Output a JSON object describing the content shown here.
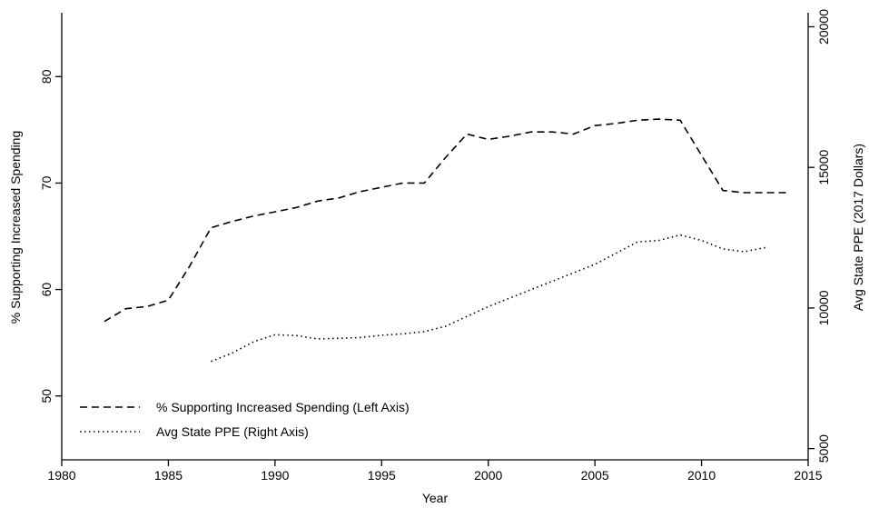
{
  "chart_data": {
    "type": "line",
    "xlabel": "Year",
    "ylabel_left": "% Supporting Increased Spending",
    "ylabel_right": "Avg State PPE (2017 Dollars)",
    "x_ticks": [
      1980,
      1985,
      1990,
      1995,
      2000,
      2005,
      2010,
      2015
    ],
    "x_tick_labels": [
      "1980",
      "1985",
      "1990",
      "1995",
      "2000",
      "2005",
      "2010",
      "2015"
    ],
    "y_left_ticks": [
      50,
      60,
      70,
      80
    ],
    "y_left_tick_labels": [
      "50",
      "60",
      "70",
      "80"
    ],
    "y_right_ticks": [
      5000,
      10000,
      15000,
      20000
    ],
    "y_right_tick_labels": [
      "5000",
      "10000",
      "15000",
      "20000"
    ],
    "xlim": [
      1980,
      2015
    ],
    "ylim_left": [
      44,
      86
    ],
    "ylim_right": [
      4600,
      20500
    ],
    "grid": false,
    "legend_position": "bottom-left",
    "series": [
      {
        "name": "% Supporting Increased Spending (Left Axis)",
        "axis": "left",
        "style": "dashed",
        "x": [
          1982,
          1983,
          1984,
          1985,
          1986,
          1987,
          1988,
          1989,
          1990,
          1991,
          1992,
          1993,
          1994,
          1995,
          1996,
          1997,
          1998,
          1999,
          2000,
          2001,
          2002,
          2003,
          2004,
          2005,
          2006,
          2007,
          2008,
          2009,
          2010,
          2011,
          2012,
          2013,
          2014
        ],
        "values": [
          57.0,
          58.2,
          58.4,
          59.0,
          62.2,
          65.8,
          66.4,
          66.9,
          67.3,
          67.7,
          68.3,
          68.6,
          69.2,
          69.6,
          70.0,
          70.0,
          72.4,
          74.6,
          74.1,
          74.4,
          74.8,
          74.8,
          74.6,
          75.4,
          75.6,
          75.9,
          76.0,
          75.9,
          72.6,
          69.3,
          69.1,
          69.1,
          69.1
        ]
      },
      {
        "name": "Avg State PPE (Right Axis)",
        "axis": "right",
        "style": "dotted",
        "x": [
          1987,
          1988,
          1989,
          1990,
          1991,
          1992,
          1993,
          1994,
          1995,
          1996,
          1997,
          1998,
          1999,
          2000,
          2001,
          2002,
          2003,
          2004,
          2005,
          2006,
          2007,
          2008,
          2009,
          2010,
          2011,
          2012,
          2013
        ],
        "values": [
          8100,
          8400,
          8800,
          9050,
          9020,
          8900,
          8920,
          8950,
          9030,
          9080,
          9160,
          9350,
          9700,
          10050,
          10350,
          10650,
          10950,
          11250,
          11550,
          11950,
          12350,
          12400,
          12600,
          12400,
          12100,
          12000,
          12150
        ]
      }
    ]
  },
  "colors": {
    "line": "#000000",
    "background": "#ffffff"
  }
}
